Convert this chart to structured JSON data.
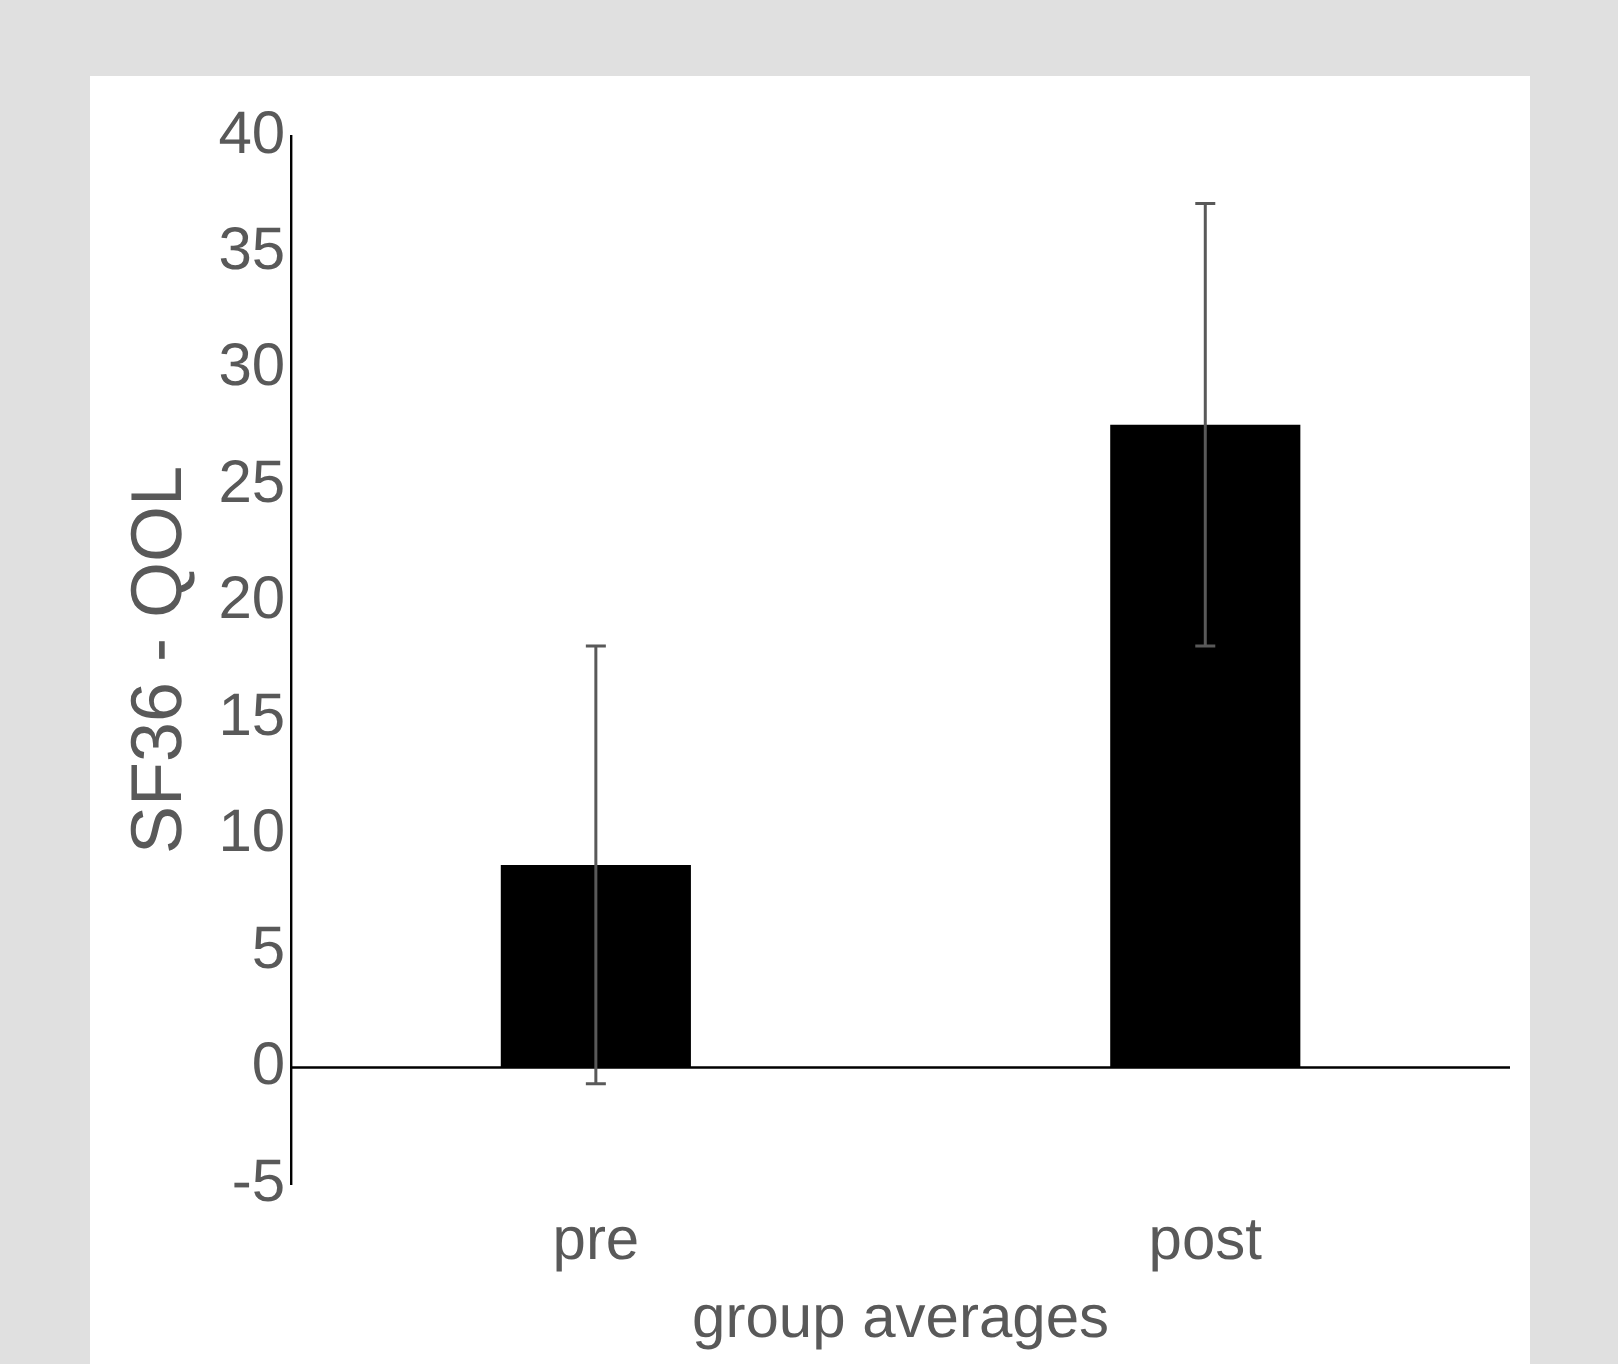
{
  "chart_data": {
    "type": "bar",
    "xlabel": "group averages",
    "ylabel": "SF36 - QOL",
    "categories": [
      "pre",
      "post"
    ],
    "values": [
      8.7,
      27.6
    ],
    "errors": [
      9.4,
      9.5
    ],
    "color": "#000000",
    "ylim": [
      -5,
      40
    ],
    "yticks": [
      -5,
      0,
      5,
      10,
      15,
      20,
      25,
      30,
      35,
      40
    ]
  }
}
